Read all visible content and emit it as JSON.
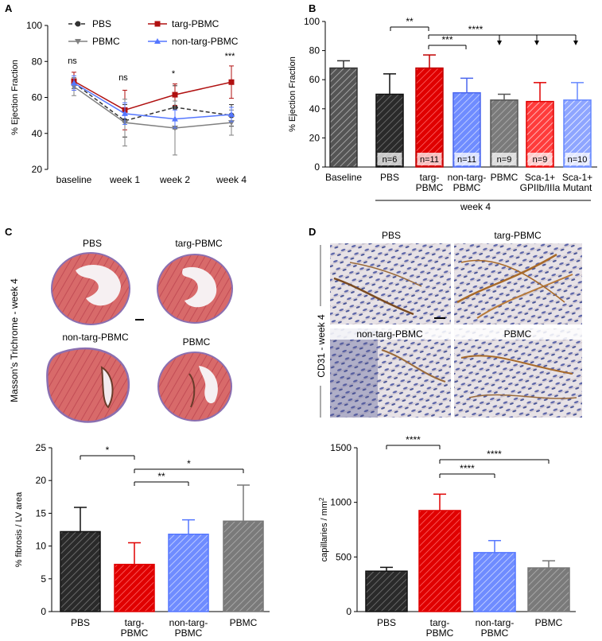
{
  "panel_labels": {
    "a": "A",
    "b": "B",
    "c": "C",
    "d": "D"
  },
  "colors": {
    "pbs": "#333333",
    "targ": "#e00000",
    "targ_line": "#b01010",
    "nontarg": "#5577ff",
    "pbmc": "#777777",
    "pbmc_line": "#808080",
    "baseline": "#606060"
  },
  "chart_data": [
    {
      "id": "A",
      "type": "line",
      "title": "",
      "ylabel": "% Ejection Fraction",
      "ylim": [
        20,
        100
      ],
      "yticks": [
        "20",
        "40",
        "60",
        "80",
        "100"
      ],
      "categories": [
        "baseline",
        "week 1",
        "week 2",
        "week 4"
      ],
      "series": [
        {
          "name": "PBS",
          "values": [
            68,
            47,
            54.5,
            50
          ],
          "err": [
            3,
            9,
            12,
            6
          ]
        },
        {
          "name": "targ-PBMC",
          "values": [
            69,
            53,
            61.5,
            68.5
          ],
          "err": [
            5,
            11,
            6,
            9
          ]
        },
        {
          "name": "PBMC",
          "values": [
            66,
            46,
            43,
            46
          ],
          "err": [
            5,
            13,
            15,
            7
          ]
        },
        {
          "name": "non-targ-PBMC",
          "values": [
            68,
            51,
            48,
            50.5
          ],
          "err": [
            4,
            6,
            5,
            4
          ]
        }
      ],
      "legend": [
        "PBS",
        "targ-PBMC",
        "PBMC",
        "non-targ-PBMC"
      ],
      "significance": [
        "ns",
        "ns",
        "*",
        "***"
      ]
    },
    {
      "id": "B",
      "type": "bar",
      "ylabel": "% Ejection Fraction",
      "ylim": [
        0,
        100
      ],
      "yticks": [
        "0",
        "20",
        "40",
        "60",
        "80",
        "100"
      ],
      "categories": [
        "Baseline",
        "PBS",
        "targ-\nPBMC",
        "non-targ-\nPBMC",
        "PBMC",
        "Sca-1+\nGPIIb/IIIa",
        "Sca-1+\nMutant"
      ],
      "values": [
        68,
        50,
        68,
        51,
        46,
        45,
        46
      ],
      "err": [
        5,
        14,
        9,
        10,
        4,
        13,
        12
      ],
      "n_labels": [
        "",
        "n=6",
        "n=11",
        "n=11",
        "n=9",
        "n=9",
        "n=10"
      ],
      "group_label": "week 4",
      "significance": [
        "**",
        "****",
        "***"
      ]
    },
    {
      "id": "C",
      "type": "bar",
      "ylabel": "% fibrosis / LV area",
      "ylim": [
        0,
        25
      ],
      "yticks": [
        "0",
        "5",
        "10",
        "15",
        "20",
        "25"
      ],
      "categories": [
        "PBS",
        "targ-\nPBMC",
        "non-targ-\nPBMC",
        "PBMC"
      ],
      "values": [
        12.2,
        7.2,
        11.8,
        13.8
      ],
      "err": [
        3.7,
        3.3,
        2.2,
        5.5
      ],
      "significance": [
        "*",
        "**",
        "*"
      ]
    },
    {
      "id": "D",
      "type": "bar",
      "ylabel": "capillaries / mm",
      "ylabel_sup": "2",
      "ylim": [
        0,
        1500
      ],
      "yticks": [
        "0",
        "500",
        "1000",
        "1500"
      ],
      "categories": [
        "PBS",
        "targ-\nPBMC",
        "non-targ-\nPBMC",
        "PBMC"
      ],
      "values": [
        370,
        925,
        540,
        400
      ],
      "err": [
        35,
        150,
        110,
        65
      ],
      "significance": [
        "****",
        "****",
        "****"
      ]
    }
  ],
  "micrographs_c": {
    "side_label": "Masson's Trichrome - week 4",
    "labels": [
      "PBS",
      "targ-PBMC",
      "non-targ-PBMC",
      "PBMC"
    ]
  },
  "micrographs_d": {
    "side_label": "CD31 - week 4",
    "labels": [
      "PBS",
      "targ-PBMC",
      "non-targ-PBMC",
      "PBMC"
    ]
  }
}
